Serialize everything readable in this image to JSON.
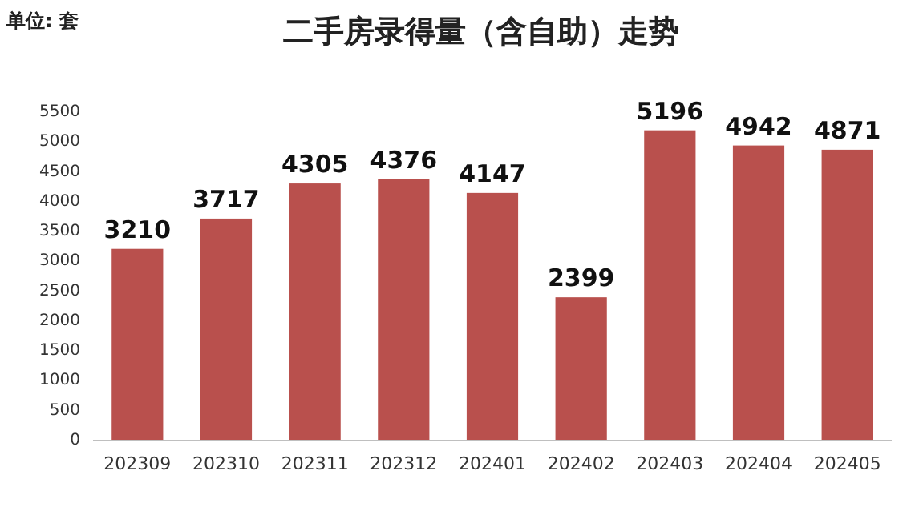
{
  "chart_data": {
    "type": "bar",
    "title": "二手房录得量（含自助）走势",
    "ylabel": "单位: 套",
    "categories": [
      "202309",
      "202310",
      "202311",
      "202312",
      "202401",
      "202402",
      "202403",
      "202404",
      "202405"
    ],
    "values": [
      3210,
      3717,
      4305,
      4376,
      4147,
      2399,
      5196,
      4942,
      4871
    ],
    "color": "#b9504d",
    "ylim": [
      0,
      5500
    ],
    "yticks": [
      0,
      500,
      1000,
      1500,
      2000,
      2500,
      3000,
      3500,
      4000,
      4500,
      5000,
      5500
    ],
    "data_labels": true
  }
}
